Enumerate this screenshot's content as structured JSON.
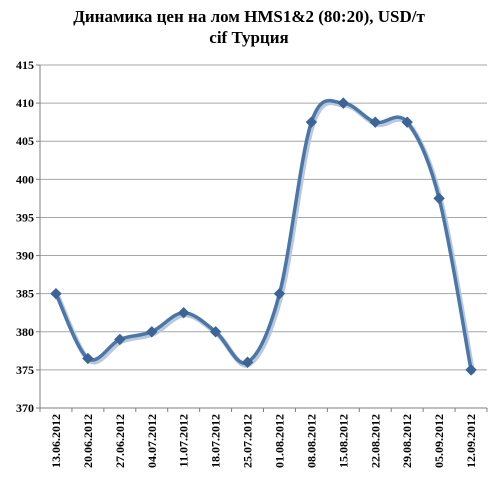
{
  "chart_data": {
    "type": "line",
    "title": "Динамика цен на лом HMS1&2 (80:20), USD/т",
    "subtitle": "cif Турция",
    "xlabel": "",
    "ylabel": "",
    "categories": [
      "13.06.2012",
      "20.06.2012",
      "27.06.2012",
      "04.07.2012",
      "11.07.2012",
      "18.07.2012",
      "25.07.2012",
      "01.08.2012",
      "08.08.2012",
      "15.08.2012",
      "22.08.2012",
      "29.08.2012",
      "05.09.2012",
      "12.09.2012"
    ],
    "series": [
      {
        "values": [
          385,
          376.5,
          379,
          380,
          382.5,
          380,
          376,
          385,
          407.5,
          410,
          407.5,
          407.5,
          397.5,
          375
        ]
      }
    ],
    "ylim": [
      370,
      415
    ],
    "yticks": [
      "370",
      "375",
      "380",
      "385",
      "390",
      "395",
      "400",
      "405",
      "410",
      "415"
    ],
    "grid": true,
    "legend": "none",
    "colors": {
      "line": "#4a76a8",
      "marker": "#3c6496",
      "grid": "#a6a6a6",
      "axis": "#7f7f7f"
    }
  }
}
